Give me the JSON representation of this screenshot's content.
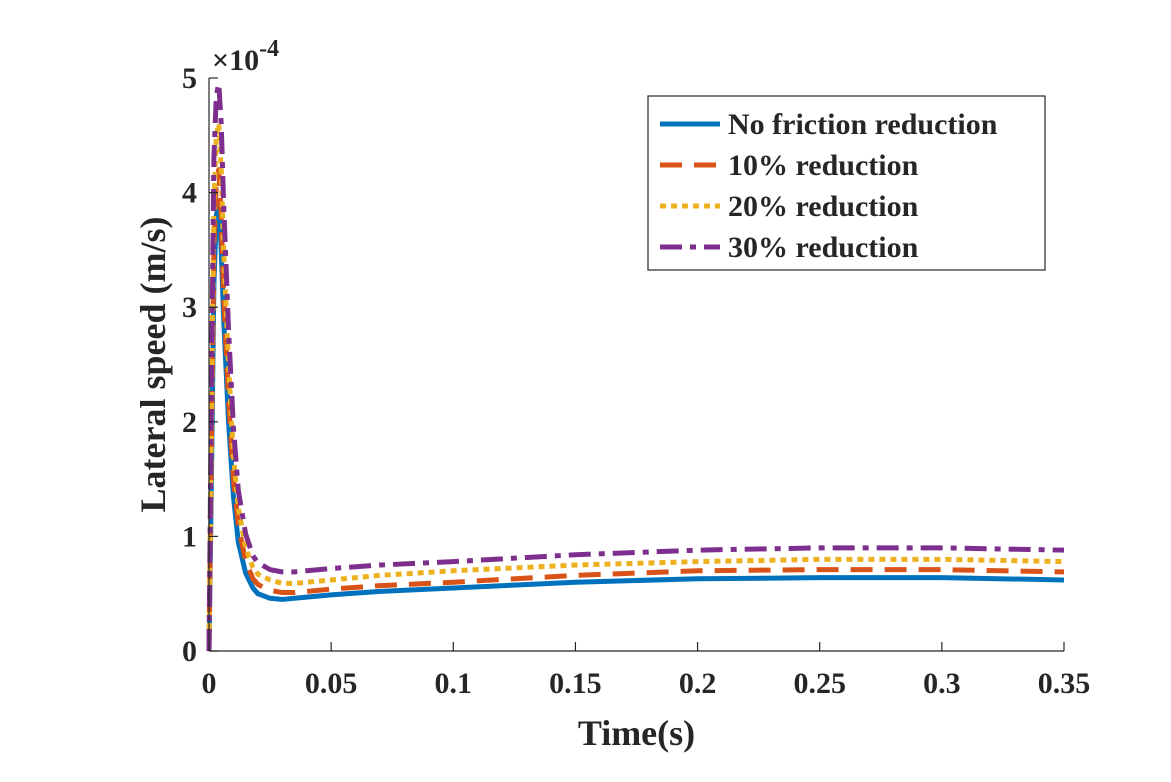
{
  "chart_data": {
    "type": "line",
    "xlabel": "Time(s)",
    "ylabel": "Lateral speed (m/s)",
    "y_exponent_label": "×10",
    "y_exponent_power": "-4",
    "xlim": [
      0,
      0.35
    ],
    "ylim": [
      0,
      5
    ],
    "x_ticks": [
      "0",
      "0.05",
      "0.1",
      "0.15",
      "0.2",
      "0.25",
      "0.3",
      "0.35"
    ],
    "y_ticks": [
      "0",
      "1",
      "2",
      "3",
      "4",
      "5"
    ],
    "grid": false,
    "legend_position": "top-right",
    "series": [
      {
        "name": "No friction reduction",
        "color": "#0072BD",
        "style": "solid",
        "x": [
          0,
          0.001,
          0.002,
          0.003,
          0.004,
          0.005,
          0.006,
          0.008,
          0.01,
          0.012,
          0.015,
          0.018,
          0.02,
          0.025,
          0.03,
          0.035,
          0.04,
          0.05,
          0.07,
          0.1,
          0.15,
          0.2,
          0.25,
          0.3,
          0.35
        ],
        "values": [
          0,
          1.5,
          3.2,
          3.8,
          3.9,
          3.5,
          2.9,
          2.0,
          1.35,
          0.95,
          0.68,
          0.55,
          0.5,
          0.46,
          0.45,
          0.46,
          0.47,
          0.49,
          0.52,
          0.55,
          0.6,
          0.63,
          0.64,
          0.64,
          0.62
        ]
      },
      {
        "name": "10% reduction",
        "color": "#D95319",
        "style": "dashed",
        "x": [
          0,
          0.001,
          0.002,
          0.003,
          0.004,
          0.005,
          0.006,
          0.008,
          0.01,
          0.012,
          0.015,
          0.018,
          0.02,
          0.025,
          0.03,
          0.035,
          0.04,
          0.05,
          0.07,
          0.1,
          0.15,
          0.2,
          0.25,
          0.3,
          0.35
        ],
        "values": [
          0,
          1.8,
          3.5,
          4.1,
          4.2,
          3.8,
          3.1,
          2.2,
          1.5,
          1.1,
          0.78,
          0.63,
          0.58,
          0.53,
          0.51,
          0.51,
          0.52,
          0.54,
          0.57,
          0.6,
          0.66,
          0.7,
          0.71,
          0.71,
          0.69
        ]
      },
      {
        "name": "20% reduction",
        "color": "#EDB120",
        "style": "dotted",
        "x": [
          0,
          0.001,
          0.002,
          0.003,
          0.004,
          0.005,
          0.006,
          0.008,
          0.01,
          0.012,
          0.015,
          0.018,
          0.02,
          0.025,
          0.03,
          0.035,
          0.04,
          0.05,
          0.07,
          0.1,
          0.15,
          0.2,
          0.25,
          0.3,
          0.35
        ],
        "values": [
          0,
          2.0,
          3.9,
          4.5,
          4.6,
          4.2,
          3.5,
          2.5,
          1.7,
          1.25,
          0.9,
          0.73,
          0.67,
          0.62,
          0.59,
          0.59,
          0.6,
          0.62,
          0.66,
          0.7,
          0.75,
          0.78,
          0.8,
          0.8,
          0.78
        ]
      },
      {
        "name": "30% reduction",
        "color": "#7E2F8E",
        "style": "dashdot",
        "x": [
          0,
          0.001,
          0.002,
          0.003,
          0.004,
          0.005,
          0.006,
          0.008,
          0.01,
          0.012,
          0.015,
          0.018,
          0.02,
          0.025,
          0.03,
          0.035,
          0.04,
          0.05,
          0.07,
          0.1,
          0.15,
          0.2,
          0.25,
          0.3,
          0.35
        ],
        "values": [
          0,
          2.3,
          4.3,
          4.85,
          4.95,
          4.6,
          3.9,
          2.8,
          1.95,
          1.4,
          1.02,
          0.83,
          0.77,
          0.71,
          0.69,
          0.69,
          0.7,
          0.72,
          0.75,
          0.78,
          0.84,
          0.88,
          0.9,
          0.9,
          0.88
        ]
      }
    ]
  }
}
